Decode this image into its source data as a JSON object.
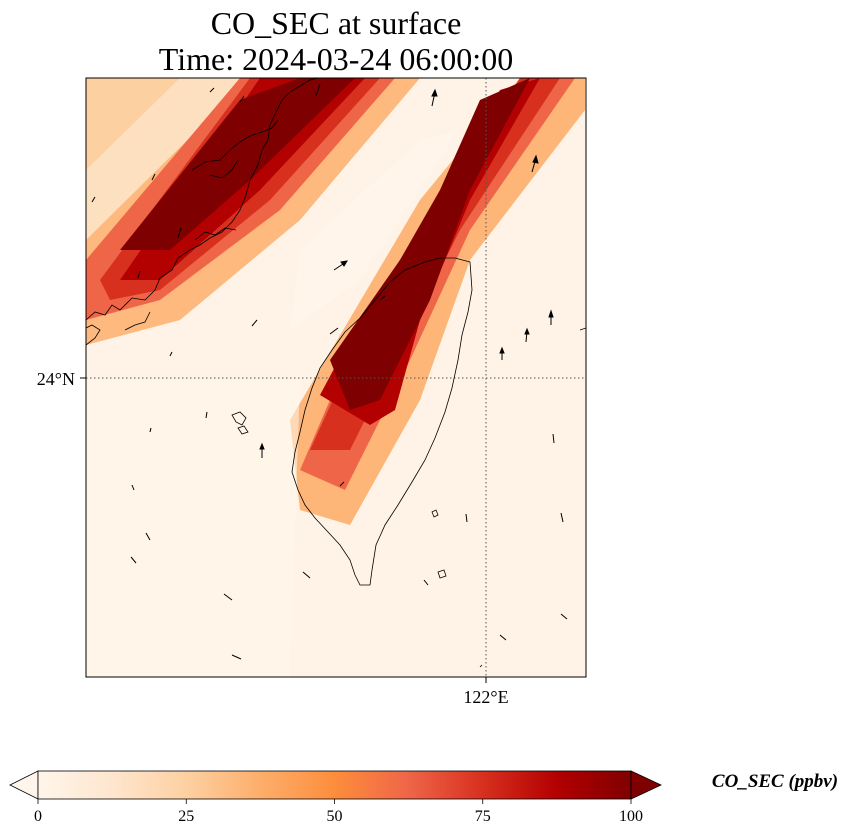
{
  "title": {
    "line1": "CO_SEC at surface",
    "line2": "Time: 2024-03-24 06:00:00"
  },
  "map": {
    "lat_label": "24°N",
    "lon_label": "122°E",
    "gridlines": "dotted"
  },
  "colorbar": {
    "title": "CO_SEC (ppbv)",
    "ticks": [
      "0",
      "25",
      "50",
      "75",
      "100"
    ],
    "min": 0,
    "max": 100,
    "extend": "both",
    "colormap": [
      "#fff5eb",
      "#fee6ce",
      "#fdd0a2",
      "#fdae6b",
      "#fd8d3c",
      "#f16913",
      "#d94801",
      "#b30000",
      "#7f0000"
    ]
  }
}
